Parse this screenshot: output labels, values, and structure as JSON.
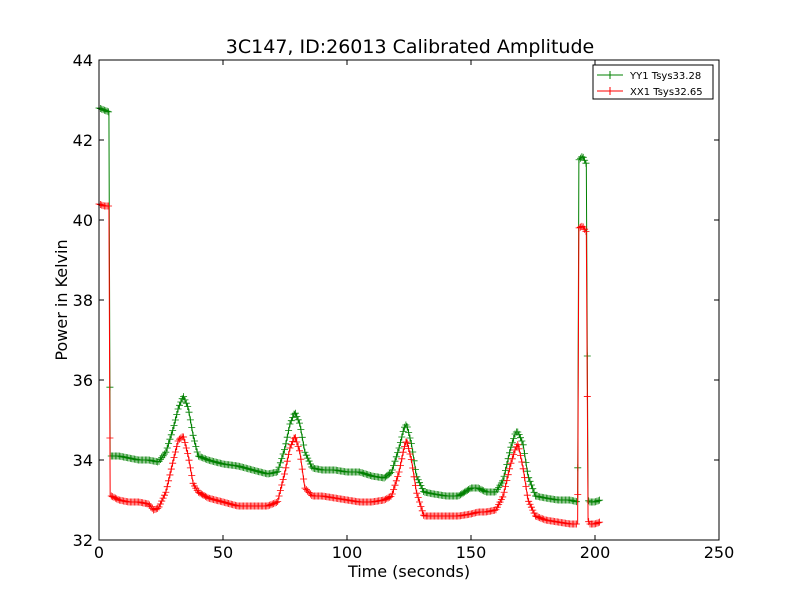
{
  "chart_data": {
    "type": "line",
    "title": "3C147, ID:26013 Calibrated Amplitude",
    "xlabel": "Time (seconds)",
    "ylabel": "Power in Kelvin",
    "xlim": [
      0,
      250
    ],
    "ylim": [
      32,
      44
    ],
    "xticks": [
      "0",
      "50",
      "100",
      "150",
      "200",
      "250"
    ],
    "yticks": [
      "32",
      "34",
      "36",
      "38",
      "40",
      "42",
      "44"
    ],
    "grid": false,
    "legend_position": "top-right",
    "marker": "+",
    "series": [
      {
        "name": "YY1 Tsys33.28",
        "color": "#008000",
        "x": [
          0,
          2,
          4,
          4.5,
          5,
          8,
          12,
          16,
          20,
          24,
          27,
          30,
          32,
          34,
          36,
          38,
          40,
          44,
          50,
          56,
          62,
          68,
          72,
          75,
          77,
          79,
          81,
          83,
          86,
          90,
          95,
          100,
          105,
          110,
          115,
          118,
          121,
          123,
          124,
          126,
          128,
          131,
          135,
          140,
          145,
          150,
          153,
          156,
          160,
          163,
          166,
          168,
          169,
          171,
          173,
          176,
          180,
          185,
          190,
          193,
          193.5,
          195,
          196.5,
          197.2,
          197.8,
          200,
          202
        ],
        "y": [
          42.8,
          42.75,
          42.7,
          34.1,
          34.1,
          34.1,
          34.05,
          34.0,
          34.0,
          33.95,
          34.2,
          34.8,
          35.3,
          35.6,
          35.3,
          34.6,
          34.1,
          34.0,
          33.9,
          33.85,
          33.75,
          33.65,
          33.7,
          34.3,
          34.9,
          35.2,
          34.9,
          34.2,
          33.8,
          33.75,
          33.75,
          33.7,
          33.7,
          33.6,
          33.55,
          33.7,
          34.3,
          34.8,
          34.9,
          34.4,
          33.6,
          33.2,
          33.15,
          33.1,
          33.1,
          33.3,
          33.3,
          33.2,
          33.2,
          33.5,
          34.3,
          34.7,
          34.7,
          34.4,
          33.6,
          33.1,
          33.05,
          33.0,
          33.0,
          32.95,
          41.5,
          41.6,
          41.4,
          33.0,
          32.95,
          32.95,
          33.0
        ]
      },
      {
        "name": "XX1 Tsys32.65",
        "color": "#ff0000",
        "x": [
          0,
          2,
          4,
          4.5,
          5,
          8,
          12,
          16,
          20,
          22,
          24,
          27,
          30,
          32,
          34,
          36,
          38,
          40,
          44,
          50,
          56,
          62,
          68,
          72,
          75,
          77,
          79,
          81,
          83,
          86,
          90,
          95,
          100,
          105,
          110,
          115,
          118,
          121,
          123,
          124,
          126,
          128,
          131,
          135,
          140,
          145,
          150,
          153,
          156,
          160,
          163,
          166,
          168,
          169,
          171,
          173,
          176,
          180,
          185,
          190,
          193,
          193.5,
          195,
          196.5,
          197.2,
          197.8,
          200,
          202
        ],
        "y": [
          40.4,
          40.35,
          40.35,
          33.1,
          33.1,
          33.0,
          32.95,
          32.95,
          32.9,
          32.75,
          32.8,
          33.2,
          34.0,
          34.5,
          34.6,
          34.1,
          33.4,
          33.2,
          33.05,
          32.95,
          32.85,
          32.85,
          32.85,
          32.95,
          33.7,
          34.3,
          34.6,
          34.2,
          33.3,
          33.1,
          33.1,
          33.05,
          33.0,
          32.95,
          32.95,
          33.0,
          33.1,
          33.7,
          34.3,
          34.5,
          34.0,
          33.2,
          32.6,
          32.6,
          32.6,
          32.6,
          32.65,
          32.7,
          32.7,
          32.75,
          33.1,
          33.9,
          34.3,
          34.4,
          33.8,
          33.0,
          32.6,
          32.5,
          32.45,
          32.4,
          32.4,
          39.8,
          39.85,
          39.7,
          32.5,
          32.4,
          32.4,
          32.45
        ]
      }
    ]
  }
}
